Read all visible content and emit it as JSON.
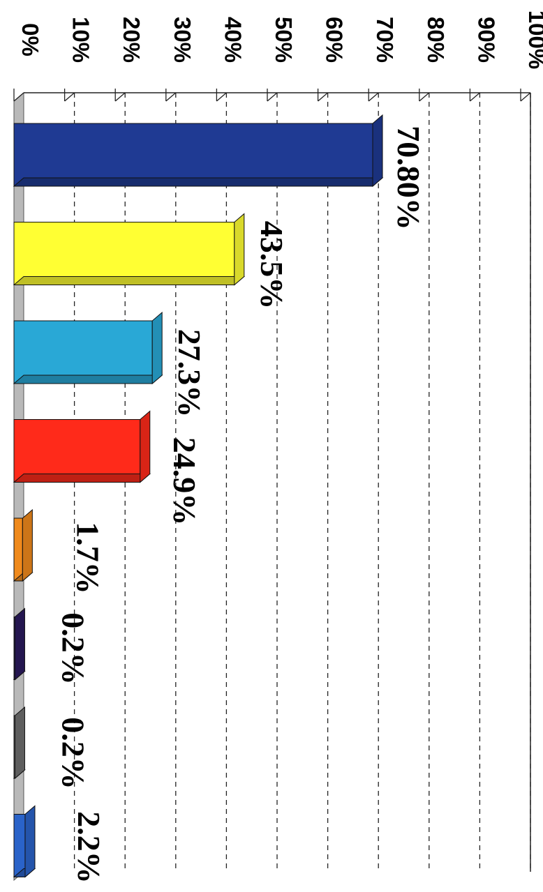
{
  "chart_data": {
    "type": "bar",
    "orientation": "rotated-90-clockwise",
    "three_d": true,
    "ylim": [
      0,
      100
    ],
    "tick_labels": [
      "0%",
      "10%",
      "20%",
      "30%",
      "40%",
      "50%",
      "60%",
      "70%",
      "80%",
      "90%",
      "100%"
    ],
    "grid": true,
    "legend": "none",
    "series": [
      {
        "values": [
          70.8,
          43.5,
          27.3,
          24.9,
          1.7,
          0.2,
          0.2,
          2.2
        ],
        "data_labels": [
          "70.80%",
          "43.5%",
          "27.3%",
          "24.9%",
          "1.7%",
          "0.2%",
          "0.2%",
          "2.2%"
        ],
        "colors": [
          "#1f3a93",
          "#ffff33",
          "#29a8d6",
          "#ff2a1a",
          "#f08a1c",
          "#2a1a5e",
          "#6e6e6e",
          "#2a63c9"
        ]
      }
    ]
  }
}
